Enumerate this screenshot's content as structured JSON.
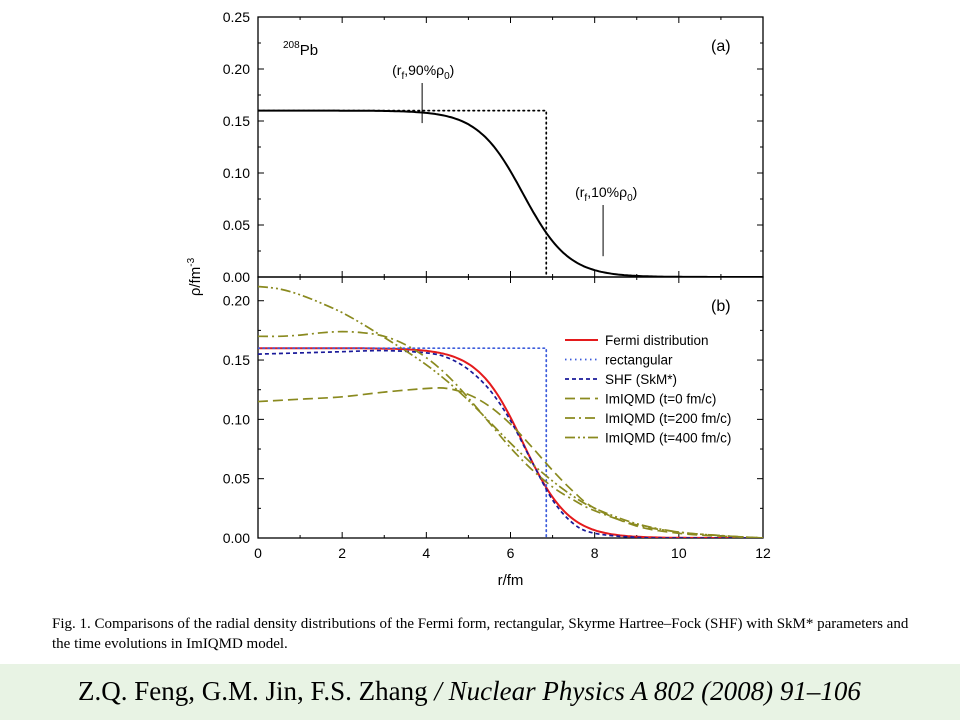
{
  "chart_data": [
    {
      "type": "line",
      "panel_label": "(a)",
      "nucleus": {
        "mass": "208",
        "element": "Pb"
      },
      "xlim": [
        0,
        12
      ],
      "ylim": [
        0,
        0.25
      ],
      "yticks": [
        "0.00",
        "0.05",
        "0.10",
        "0.15",
        "0.20",
        "0.25"
      ],
      "series": [
        {
          "style": "solid",
          "color": "#000000",
          "model": "fermi",
          "rho0": 0.16,
          "R": 6.3,
          "a": 0.54
        },
        {
          "style": "dotted",
          "color": "#000000",
          "model": "rect",
          "rho0": 0.16,
          "R": 6.85
        }
      ],
      "annotations": [
        {
          "pre": "(r",
          "sub1": "f",
          "mid": ",90%ρ",
          "sub2": "0",
          "post": ")",
          "x": 3.9,
          "y": 0.148
        },
        {
          "pre": "(r",
          "sub1": "f",
          "mid": ",10%ρ",
          "sub2": "0",
          "post": ")",
          "x": 8.2,
          "y": 0.02
        }
      ]
    },
    {
      "type": "line",
      "panel_label": "(b)",
      "xlim": [
        0,
        12
      ],
      "ylim": [
        0,
        0.22
      ],
      "yticks": [
        "0.00",
        "0.05",
        "0.10",
        "0.15",
        "0.20"
      ],
      "series": [
        {
          "name": "Fermi distribution",
          "style": "solid",
          "color": "#e41a1c",
          "model": "fermi",
          "rho0": 0.16,
          "R": 6.3,
          "a": 0.54
        },
        {
          "name": "rectangular",
          "style": "dotted",
          "color": "#3b5bdb",
          "model": "rect",
          "rho0": 0.16,
          "R": 6.85
        },
        {
          "name": "SHF (SkM*)",
          "style": "dashed",
          "color": "#1a1a9a",
          "x": [
            0,
            1,
            2,
            3,
            4,
            4.5,
            5,
            5.5,
            6,
            6.5,
            7,
            7.5,
            8,
            9,
            10,
            12
          ],
          "y": [
            0.155,
            0.156,
            0.157,
            0.158,
            0.156,
            0.152,
            0.142,
            0.125,
            0.099,
            0.065,
            0.032,
            0.012,
            0.004,
            0.0005,
            0.0,
            0.0
          ]
        },
        {
          "name": "ImIQMD (t=0 fm/c)",
          "style": "longdash",
          "color": "#8a8a1f",
          "x": [
            0,
            1,
            2,
            3,
            4,
            4.5,
            5,
            5.5,
            6,
            6.5,
            7,
            7.5,
            8,
            9,
            10,
            11,
            12
          ],
          "y": [
            0.115,
            0.117,
            0.119,
            0.123,
            0.126,
            0.126,
            0.121,
            0.111,
            0.096,
            0.077,
            0.057,
            0.039,
            0.025,
            0.01,
            0.004,
            0.0015,
            0.0
          ]
        },
        {
          "name": "ImIQMD (t=200 fm/c)",
          "style": "dashdot",
          "color": "#8a8a1f",
          "x": [
            0,
            0.5,
            1,
            1.5,
            2,
            2.5,
            3,
            3.5,
            4,
            4.5,
            5,
            5.5,
            6,
            6.5,
            7,
            7.5,
            8,
            9,
            10,
            11,
            12
          ],
          "y": [
            0.17,
            0.17,
            0.171,
            0.173,
            0.174,
            0.173,
            0.17,
            0.163,
            0.152,
            0.137,
            0.118,
            0.097,
            0.076,
            0.058,
            0.043,
            0.032,
            0.023,
            0.011,
            0.005,
            0.002,
            0.0
          ]
        },
        {
          "name": "ImIQMD (t=400 fm/c)",
          "style": "dashdotdot",
          "color": "#8a8a1f",
          "x": [
            0,
            0.5,
            1,
            1.5,
            2,
            2.5,
            3,
            3.5,
            4,
            4.5,
            5,
            5.5,
            6,
            6.5,
            7,
            7.5,
            8,
            9,
            10,
            11,
            12
          ],
          "y": [
            0.212,
            0.21,
            0.205,
            0.198,
            0.19,
            0.18,
            0.169,
            0.158,
            0.146,
            0.132,
            0.116,
            0.098,
            0.08,
            0.063,
            0.048,
            0.035,
            0.025,
            0.012,
            0.005,
            0.002,
            0.0
          ]
        }
      ],
      "legend_position": "right"
    }
  ],
  "axes": {
    "xlabel": "r/fm",
    "ylabel_base": "ρ/fm",
    "ylabel_exp": "-3",
    "xticks": [
      "0",
      "2",
      "4",
      "6",
      "8",
      "10",
      "12"
    ]
  },
  "caption": {
    "label": "Fig. 1.",
    "text": " Comparisons of the radial density distributions of the Fermi form, rectangular, Skyrme Hartree–Fock (SHF) with SkM* parameters and the time evolutions in ImIQMD model."
  },
  "citation": {
    "authors": "Z.Q. Feng, G.M. Jin,  F.S. Zhang ",
    "journal": "/ Nuclear Physics A 802 (2008) 91–106"
  },
  "colors": {
    "footer_background": "#e8f3e4"
  }
}
